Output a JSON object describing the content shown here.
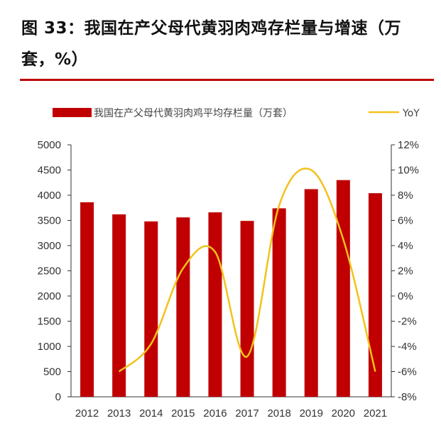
{
  "header": {
    "title": "图 33：我国在产父母代黄羽肉鸡存栏量与增速（万套，%）"
  },
  "colors": {
    "bar": "#c00000",
    "line": "#f2c21b",
    "rule": "#c00000"
  },
  "chart_data": {
    "type": "bar",
    "title": "",
    "categories": [
      "2012",
      "2013",
      "2014",
      "2015",
      "2016",
      "2017",
      "2018",
      "2019",
      "2020",
      "2021"
    ],
    "series": [
      {
        "name": "我国在产父母代黄羽肉鸡平均存栏量（万套）",
        "type": "bar",
        "axis": "left",
        "values": [
          3860,
          3620,
          3480,
          3560,
          3660,
          3490,
          3740,
          4120,
          4300,
          4040
        ]
      },
      {
        "name": "YoY",
        "type": "line",
        "axis": "right",
        "unit": "%",
        "values": [
          null,
          -6.0,
          -3.8,
          2.2,
          3.5,
          -4.8,
          7.2,
          10.0,
          4.5,
          -6.0
        ]
      }
    ],
    "y_left": {
      "min": 0,
      "max": 5000,
      "step": 500,
      "ticks": [
        "0",
        "500",
        "1000",
        "1500",
        "2000",
        "2500",
        "3000",
        "3500",
        "4000",
        "4500",
        "5000"
      ]
    },
    "y_right": {
      "min": -8,
      "max": 12,
      "step": 2,
      "ticks": [
        "-8%",
        "-6%",
        "-4%",
        "-2%",
        "0%",
        "2%",
        "4%",
        "6%",
        "8%",
        "10%",
        "12%"
      ]
    },
    "legend_position": "top",
    "grid": false
  }
}
